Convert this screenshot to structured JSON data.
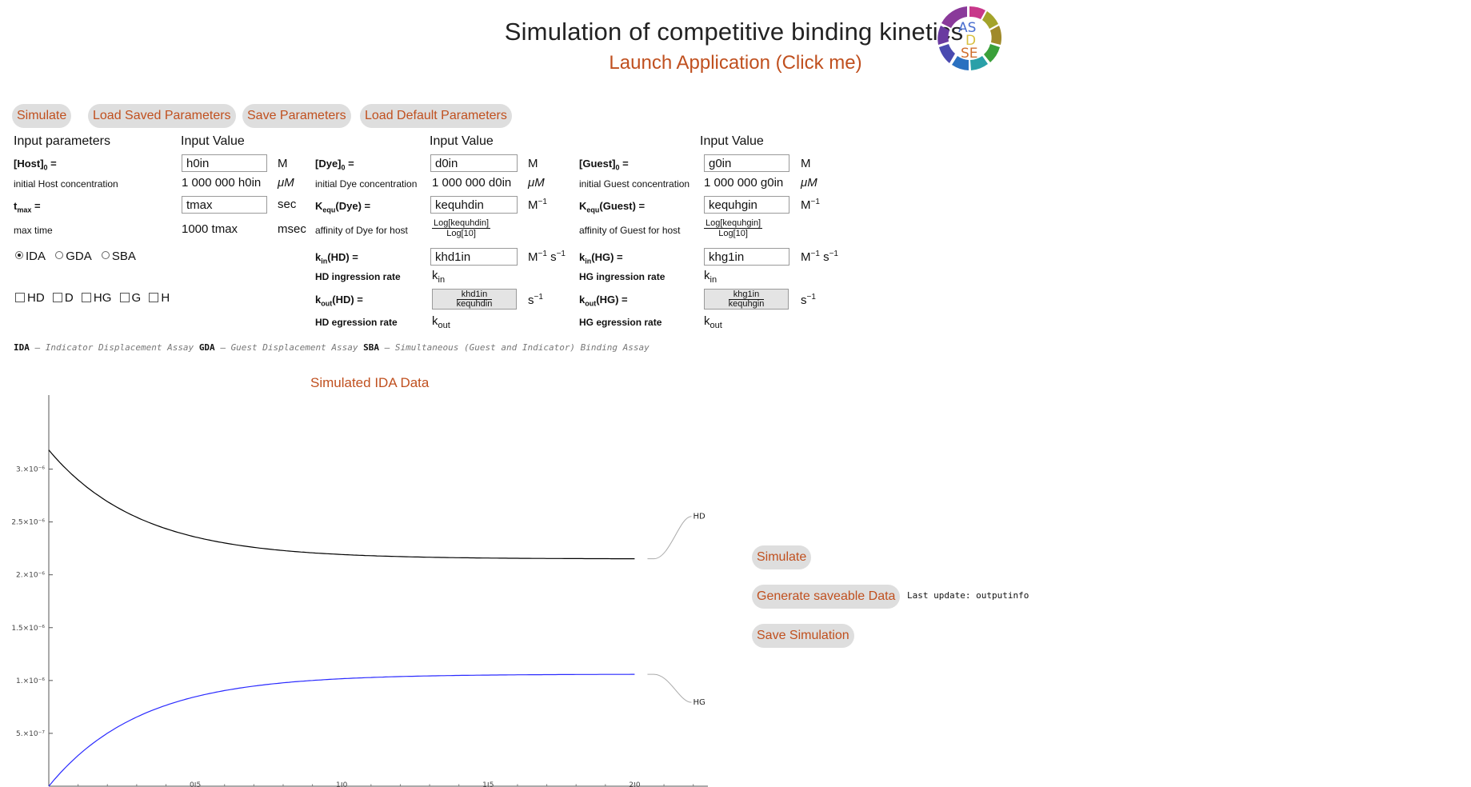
{
  "header": {
    "title": "Simulation of competitive binding kinetics",
    "launch_label": "Launch Application (Click me)",
    "logo_letters": [
      "AS",
      "D",
      "SE"
    ]
  },
  "toolbar": {
    "simulate": "Simulate",
    "load_saved": "Load Saved Parameters",
    "save": "Save Parameters",
    "load_default": "Load Default Parameters"
  },
  "params": {
    "col1_header": "Input parameters",
    "col2_header": "Input Value",
    "col4_header": "Input Value",
    "col6_header": "Input Value",
    "host": {
      "label": "[Host]",
      "sub": "0",
      "eq": " =",
      "input": "h0in",
      "unit": "M",
      "desc": "initial Host concentration",
      "calc": "1 000 000 h0in",
      "calc_unit": "μM"
    },
    "tmax": {
      "label": "t",
      "sub": "max",
      "eq": " =",
      "input": "tmax",
      "unit": "sec",
      "desc": "max time",
      "calc": "1000 tmax",
      "calc_unit": "msec"
    },
    "dye": {
      "label": "[Dye]",
      "sub": "0",
      "eq": " =",
      "input": "d0in",
      "unit": "M",
      "desc": "initial Dye concentration",
      "calc": "1 000 000 d0in",
      "calc_unit": "μM"
    },
    "kequ_dye": {
      "label": "K",
      "sub": "equ",
      "rest": "(Dye) =",
      "input": "kequhdin",
      "unit": "M",
      "unit_sup": "−1",
      "desc": "affinity of Dye for host",
      "frac_num": "Log[kequhdin]",
      "frac_den": "Log[10]"
    },
    "kin_hd": {
      "label": "k",
      "sub": "in",
      "rest": "(HD) =",
      "input": "khd1in",
      "unit1": "M",
      "unit1_sup": "−1",
      "unit2": "s",
      "unit2_sup": "−1",
      "desc": "HD ingression rate",
      "calc": "k",
      "calc_sub": "in"
    },
    "kout_hd": {
      "label": "k",
      "sub": "out",
      "rest": "(HD) =",
      "frac_num": "khd1in",
      "frac_den": "kequhdin",
      "unit": "s",
      "unit_sup": "−1",
      "desc": "HD egression rate",
      "calc": "k",
      "calc_sub": "out"
    },
    "guest": {
      "label": "[Guest]",
      "sub": "0",
      "eq": " =",
      "input": "g0in",
      "unit": "M",
      "desc": "initial Guest concentration",
      "calc": "1 000 000 g0in",
      "calc_unit": "μM"
    },
    "kequ_guest": {
      "label": "K",
      "sub": "equ",
      "rest": "(Guest) =",
      "input": "kequhgin",
      "unit": "M",
      "unit_sup": "−1",
      "desc": "affinity of Guest for host",
      "frac_num": "Log[kequhgin]",
      "frac_den": "Log[10]"
    },
    "kin_hg": {
      "label": "k",
      "sub": "in",
      "rest": "(HG) =",
      "input": "khg1in",
      "unit1": "M",
      "unit1_sup": "−1",
      "unit2": "s",
      "unit2_sup": "−1",
      "desc": "HG ingression rate",
      "calc": "k",
      "calc_sub": "in"
    },
    "kout_hg": {
      "label": "k",
      "sub": "out",
      "rest": "(HG) =",
      "frac_num": "khg1in",
      "frac_den": "kequhgin",
      "unit": "s",
      "unit_sup": "−1",
      "desc": "HG egression rate",
      "calc": "k",
      "calc_sub": "out"
    }
  },
  "assay": {
    "options": [
      "IDA",
      "GDA",
      "SBA"
    ],
    "selected": "IDA"
  },
  "species": [
    "HD",
    "D",
    "HG",
    "G",
    "H"
  ],
  "legend_note": {
    "ida": "IDA",
    "ida_desc": "Indicator Displacement Assay",
    "gda": "GDA",
    "gda_desc": "Guest Displacement Assay",
    "sba": "SBA",
    "sba_desc": "Simultaneous (Guest and Indicator) Binding Assay",
    "dash": "–"
  },
  "right_panel": {
    "simulate": "Simulate",
    "generate": "Generate saveable Data",
    "save_sim": "Save Simulation",
    "last_update_label": "Last update:",
    "last_update_value": "outputinfo"
  },
  "chart_data": {
    "type": "line",
    "title": "Simulated IDA Data",
    "xlabel": "",
    "ylabel": "",
    "xlim": [
      0,
      2.25
    ],
    "ylim": [
      0,
      3.7e-06
    ],
    "x_ticks": [
      0.5,
      1.0,
      1.5,
      2.0
    ],
    "x_tick_labels": [
      "0.5",
      "1.0",
      "1.5",
      "2.0"
    ],
    "y_ticks": [
      5e-07,
      1e-06,
      1.5e-06,
      2e-06,
      2.5e-06,
      3e-06
    ],
    "y_tick_labels": [
      "5.×10⁻⁷",
      "1.×10⁻⁶",
      "1.5×10⁻⁶",
      "2.×10⁻⁶",
      "2.5×10⁻⁶",
      "3.×10⁻⁶"
    ],
    "series": [
      {
        "name": "HD",
        "color": "#000000",
        "start": 3.18e-06,
        "end": 2.15e-06,
        "rate": 3.2
      },
      {
        "name": "HG",
        "color": "#2a2aff",
        "start": 0.0,
        "end": 1.06e-06,
        "rate": 3.2
      }
    ],
    "x_end": 2.0,
    "grid": false,
    "legend": "right"
  }
}
